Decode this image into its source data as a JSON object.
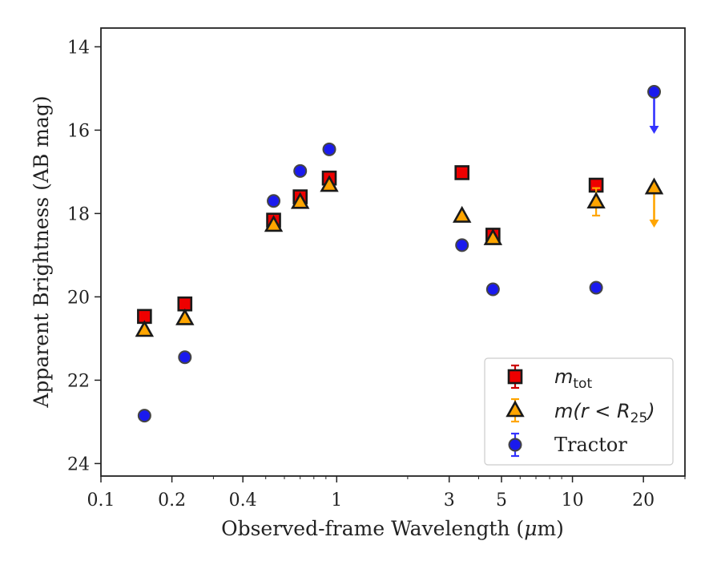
{
  "chart_data": {
    "type": "scatter",
    "xlabel_text": "Observed-frame Wavelength (",
    "xlabel_mu": "μ",
    "xlabel_unit": "m)",
    "ylabel": "Apparent Brightness (AB mag)",
    "xscale": "log",
    "xlim": [
      0.1,
      30
    ],
    "ylim": [
      24.3,
      13.55
    ],
    "y_inverted": true,
    "grid": false,
    "legend_position": "lower-right",
    "xticks": [
      {
        "value": 0.1,
        "label": "0.1"
      },
      {
        "value": 0.2,
        "label": "0.2"
      },
      {
        "value": 0.4,
        "label": "0.4"
      },
      {
        "value": 1,
        "label": "1"
      },
      {
        "value": 3,
        "label": "3"
      },
      {
        "value": 5,
        "label": "5"
      },
      {
        "value": 10,
        "label": "10"
      },
      {
        "value": 20,
        "label": "20"
      }
    ],
    "yticks": [
      {
        "value": 14,
        "label": "14"
      },
      {
        "value": 16,
        "label": "16"
      },
      {
        "value": 18,
        "label": "18"
      },
      {
        "value": 20,
        "label": "20"
      },
      {
        "value": 22,
        "label": "22"
      },
      {
        "value": 24,
        "label": "24"
      }
    ],
    "series": [
      {
        "key": "m-tot",
        "legend_label": "m",
        "legend_sub": "tot",
        "marker": "square",
        "color": "#ee0000",
        "err_color": "#cc0000",
        "points": [
          {
            "x": 0.153,
            "y": 20.47,
            "err": 0.08
          },
          {
            "x": 0.227,
            "y": 20.17,
            "err": 0.06
          },
          {
            "x": 0.54,
            "y": 18.16,
            "err": 0.05
          },
          {
            "x": 0.7,
            "y": 17.6,
            "err": 0.05
          },
          {
            "x": 0.93,
            "y": 17.15,
            "err": 0.05
          },
          {
            "x": 3.4,
            "y": 17.02,
            "err": 0.04
          },
          {
            "x": 4.6,
            "y": 18.52,
            "err": 0.05
          },
          {
            "x": 12.6,
            "y": 17.32,
            "err": 0.05
          }
        ]
      },
      {
        "key": "m-r-lt-r25",
        "legend_label": "m(r < R",
        "legend_sub": "25",
        "legend_close": ")",
        "marker": "triangle",
        "color": "#ffa500",
        "err_color": "#ffa500",
        "points": [
          {
            "x": 0.153,
            "y": 20.8,
            "err": 0.06
          },
          {
            "x": 0.227,
            "y": 20.52,
            "err": 0.06
          },
          {
            "x": 0.54,
            "y": 18.28,
            "err": 0.05
          },
          {
            "x": 0.7,
            "y": 17.73,
            "err": 0.05
          },
          {
            "x": 0.93,
            "y": 17.32,
            "err": 0.05
          },
          {
            "x": 3.4,
            "y": 18.06,
            "err": 0.04
          },
          {
            "x": 4.6,
            "y": 18.6,
            "err": 0.05
          },
          {
            "x": 12.6,
            "y": 17.72,
            "err": 0.33
          },
          {
            "x": 22.2,
            "y": 17.38,
            "upper_limit": true,
            "limit_to": 18.3
          }
        ]
      },
      {
        "key": "tractor",
        "legend_label": "Tractor",
        "marker": "circle",
        "color": "#1a1aee",
        "err_color": "#3333ff",
        "points": [
          {
            "x": 0.153,
            "y": 22.85,
            "err": 0.08
          },
          {
            "x": 0.227,
            "y": 21.45,
            "err": 0.06
          },
          {
            "x": 0.54,
            "y": 17.7,
            "err": 0.05
          },
          {
            "x": 0.7,
            "y": 16.98,
            "err": 0.05
          },
          {
            "x": 0.93,
            "y": 16.46,
            "err": 0.05
          },
          {
            "x": 3.4,
            "y": 18.76,
            "err": 0.04
          },
          {
            "x": 4.6,
            "y": 19.82,
            "err": 0.05
          },
          {
            "x": 12.6,
            "y": 19.78,
            "err": 0.05
          },
          {
            "x": 22.2,
            "y": 15.08,
            "upper_limit": true,
            "limit_to": 16.05
          }
        ]
      }
    ]
  }
}
